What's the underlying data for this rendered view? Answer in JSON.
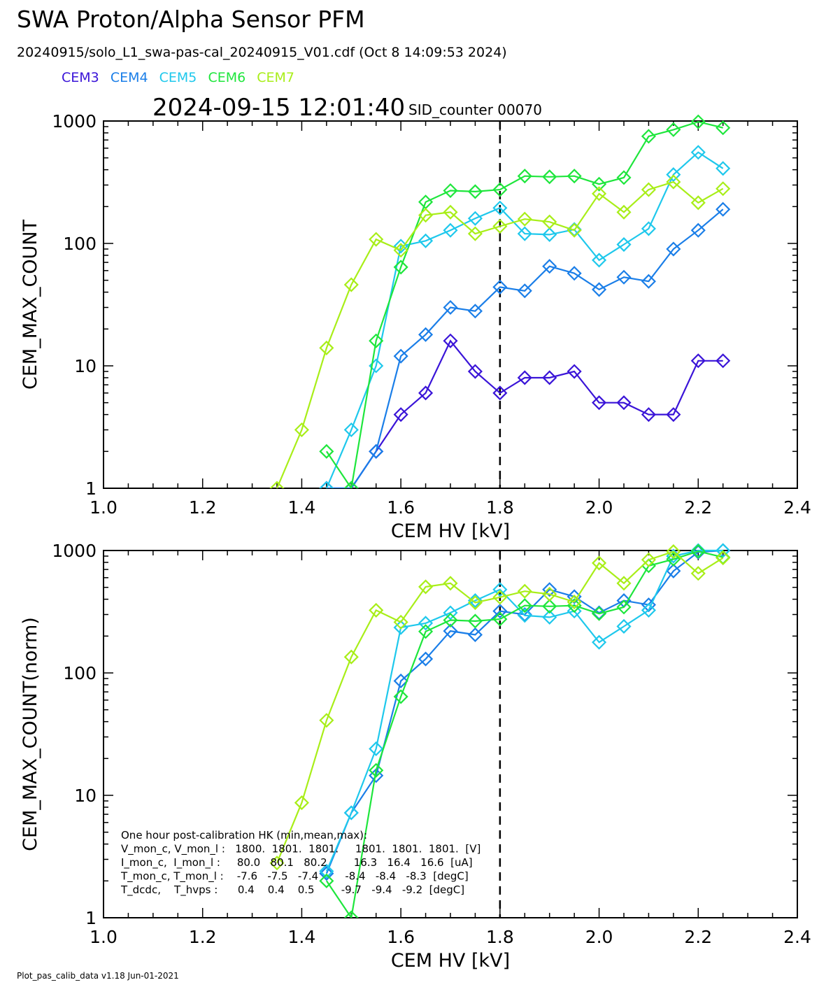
{
  "header": {
    "title": "SWA Proton/Alpha Sensor PFM",
    "subtitle": "20240915/solo_L1_swa-pas-cal_20240915_V01.cdf  (Oct  8 14:09:53 2024)",
    "timestamp": "2024-09-15 12:01:40",
    "sid_counter": "SID_counter 00070"
  },
  "legend": [
    {
      "name": "CEM3",
      "color": "#3a14d8"
    },
    {
      "name": "CEM4",
      "color": "#1a7ee8"
    },
    {
      "name": "CEM5",
      "color": "#1ec8ec"
    },
    {
      "name": "CEM6",
      "color": "#1ee63c"
    },
    {
      "name": "CEM7",
      "color": "#a8ee18"
    }
  ],
  "hk_box": {
    "lines": [
      "One hour post-calibration HK (min,mean,max):",
      "V_mon_c, V_mon_l :   1800.  1801.  1801.     1801.  1801.  1801.  [V]",
      "I_mon_c,  I_mon_l :     80.0   80.1   80.2        16.3   16.4   16.6  [uA]",
      "T_mon_c, T_mon_l :    -7.6   -7.5   -7.4        -8.4   -8.4   -8.3  [degC]",
      "T_dcdc,    T_hvps :      0.4    0.4    0.5        -9.7   -9.4   -9.2  [degC]"
    ]
  },
  "footer": "Plot_pas_calib_data v1.18 Jun-01-2021",
  "chart_data": [
    {
      "type": "line",
      "xlabel": "CEM HV [kV]",
      "ylabel": "CEM_MAX_COUNT",
      "xlim": [
        1.0,
        2.4
      ],
      "ylim": [
        1,
        1000
      ],
      "yscale": "log",
      "xticks": [
        "1.0",
        "1.2",
        "1.4",
        "1.6",
        "1.8",
        "2.0",
        "2.2",
        "2.4"
      ],
      "yticks": [
        "1",
        "10",
        "100",
        "1000"
      ],
      "vline": 1.8,
      "series": [
        {
          "name": "CEM3",
          "color": "#3a14d8",
          "x": [
            1.45,
            1.5,
            1.55,
            1.6,
            1.65,
            1.7,
            1.75,
            1.8,
            1.85,
            1.9,
            1.95,
            2.0,
            2.05,
            2.1,
            2.15,
            2.2,
            2.25
          ],
          "y": [
            1,
            1,
            2,
            4,
            6,
            16,
            9,
            6,
            8,
            8,
            9,
            5,
            5,
            4,
            4,
            11,
            11
          ]
        },
        {
          "name": "CEM4",
          "color": "#1a7ee8",
          "x": [
            1.45,
            1.5,
            1.55,
            1.6,
            1.65,
            1.7,
            1.75,
            1.8,
            1.85,
            1.9,
            1.95,
            2.0,
            2.05,
            2.1,
            2.15,
            2.2,
            2.25
          ],
          "y": [
            1,
            1,
            2,
            12,
            18,
            30,
            28,
            44,
            41,
            65,
            57,
            42,
            53,
            49,
            90,
            128,
            190
          ]
        },
        {
          "name": "CEM5",
          "color": "#1ec8ec",
          "x": [
            1.45,
            1.5,
            1.55,
            1.6,
            1.65,
            1.7,
            1.75,
            1.8,
            1.85,
            1.9,
            1.95,
            2.0,
            2.05,
            2.1,
            2.15,
            2.2,
            2.25
          ],
          "y": [
            1,
            3,
            10,
            95,
            105,
            128,
            160,
            195,
            120,
            118,
            130,
            73,
            98,
            132,
            365,
            555,
            410
          ]
        },
        {
          "name": "CEM6",
          "color": "#1ee63c",
          "x": [
            1.45,
            1.5,
            1.55,
            1.6,
            1.65,
            1.7,
            1.75,
            1.8,
            1.85,
            1.9,
            1.95,
            2.0,
            2.05,
            2.1,
            2.15,
            2.2,
            2.25
          ],
          "y": [
            2,
            1,
            16,
            64,
            218,
            270,
            265,
            275,
            355,
            350,
            355,
            305,
            345,
            750,
            850,
            985,
            880
          ]
        },
        {
          "name": "CEM7",
          "color": "#a8ee18",
          "x": [
            1.35,
            1.4,
            1.45,
            1.5,
            1.55,
            1.6,
            1.65,
            1.7,
            1.75,
            1.8,
            1.85,
            1.9,
            1.95,
            2.0,
            2.05,
            2.1,
            2.15,
            2.2,
            2.25
          ],
          "y": [
            1,
            3,
            14,
            46,
            108,
            88,
            170,
            180,
            120,
            138,
            158,
            150,
            128,
            255,
            180,
            275,
            318,
            215,
            280
          ]
        }
      ]
    },
    {
      "type": "line",
      "xlabel": "CEM HV [kV]",
      "ylabel": "CEM_MAX_COUNT(norm)",
      "xlim": [
        1.0,
        2.4
      ],
      "ylim": [
        1,
        1000
      ],
      "yscale": "log",
      "xticks": [
        "1.0",
        "1.2",
        "1.4",
        "1.6",
        "1.8",
        "2.0",
        "2.2",
        "2.4"
      ],
      "yticks": [
        "1",
        "10",
        "100",
        "1000"
      ],
      "vline": 1.8,
      "series": [
        {
          "name": "CEM3",
          "color": "#3a14d8",
          "x": [],
          "y": []
        },
        {
          "name": "CEM4",
          "color": "#1a7ee8",
          "x": [
            1.45,
            1.5,
            1.55,
            1.6,
            1.65,
            1.7,
            1.75,
            1.8,
            1.85,
            1.9,
            1.95,
            2.0,
            2.05,
            2.1,
            2.15,
            2.2,
            2.25
          ],
          "y": [
            2.3,
            7.2,
            14.5,
            86,
            130,
            220,
            205,
            320,
            300,
            480,
            420,
            310,
            390,
            360,
            680,
            970,
            1000
          ]
        },
        {
          "name": "CEM5",
          "color": "#1ec8ec",
          "x": [
            1.45,
            1.5,
            1.55,
            1.6,
            1.65,
            1.7,
            1.75,
            1.8,
            1.85,
            1.9,
            1.95,
            2.0,
            2.05,
            2.1,
            2.15,
            2.2,
            2.25
          ],
          "y": [
            2.4,
            7.2,
            24,
            235,
            255,
            310,
            390,
            480,
            295,
            285,
            320,
            178,
            240,
            325,
            900,
            1000,
            1000
          ]
        },
        {
          "name": "CEM6",
          "color": "#1ee63c",
          "x": [
            1.45,
            1.5,
            1.55,
            1.6,
            1.65,
            1.7,
            1.75,
            1.8,
            1.85,
            1.9,
            1.95,
            2.0,
            2.05,
            2.1,
            2.15,
            2.2,
            2.25
          ],
          "y": [
            2,
            1,
            16,
            64,
            218,
            270,
            265,
            275,
            355,
            350,
            355,
            305,
            345,
            750,
            850,
            985,
            880
          ]
        },
        {
          "name": "CEM7",
          "color": "#a8ee18",
          "x": [
            1.35,
            1.4,
            1.45,
            1.5,
            1.55,
            1.6,
            1.65,
            1.7,
            1.75,
            1.8,
            1.85,
            1.9,
            1.95,
            2.0,
            2.05,
            2.1,
            2.15,
            2.2,
            2.25
          ],
          "y": [
            2.8,
            8.7,
            41,
            135,
            325,
            260,
            505,
            540,
            375,
            415,
            465,
            440,
            380,
            790,
            540,
            840,
            980,
            650,
            870
          ]
        }
      ]
    }
  ]
}
